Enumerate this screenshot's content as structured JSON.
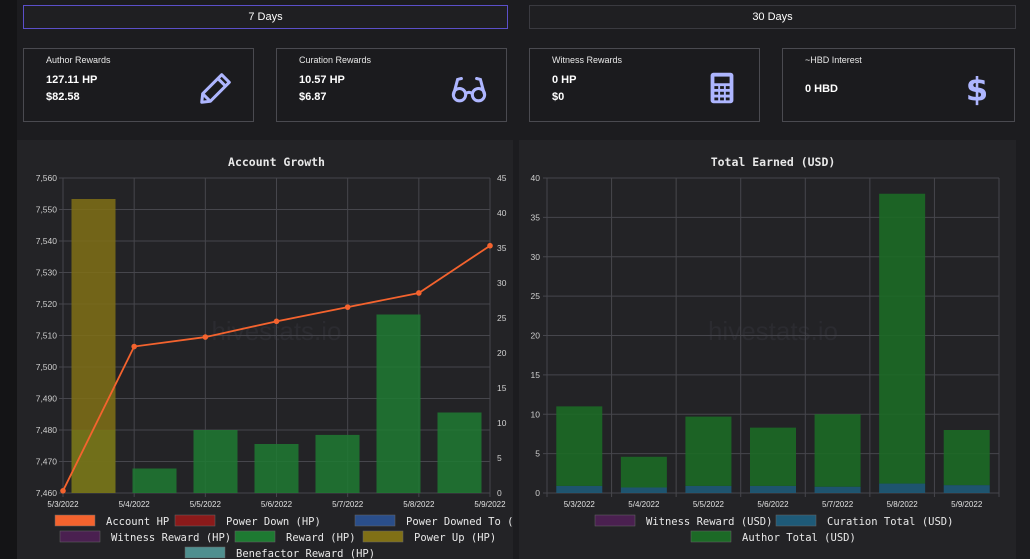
{
  "tabs": [
    {
      "label": "7 Days",
      "active": true
    },
    {
      "label": "30 Days",
      "active": false
    }
  ],
  "cards": [
    {
      "label": "Author Rewards",
      "line1": "127.11 HP",
      "line2": "$82.58",
      "icon": "pencil-icon"
    },
    {
      "label": "Curation Rewards",
      "line1": "10.57 HP",
      "line2": "$6.87",
      "icon": "glasses-icon"
    },
    {
      "label": "Witness Rewards",
      "line1": "0 HP",
      "line2": "$0",
      "icon": "calculator-icon"
    },
    {
      "label": "~HBD Interest",
      "line1": "0 HBD",
      "line2": "",
      "icon": "dollar-icon"
    }
  ],
  "colors": {
    "icon": "#aeb6ff",
    "account_hp": "#f4632e",
    "power_down": "#8b1a1a",
    "power_downed_to": "#2a4e8a",
    "witness_reward": "#4a2050",
    "reward": "#1e7a32",
    "power_up": "#807016",
    "benefactor": "#4f8f8f",
    "curation_total": "#1e5a78",
    "author_total": "#1c6a26"
  },
  "watermark": "hivestats.io",
  "chart_data": [
    {
      "type": "bar",
      "title": "Account Growth",
      "categories": [
        "5/3/2022",
        "5/4/2022",
        "5/5/2022",
        "5/6/2022",
        "5/7/2022",
        "5/8/2022",
        "5/9/2022"
      ],
      "y_left": {
        "min": 7460,
        "max": 7560,
        "ticks": [
          "7,460",
          "7,470",
          "7,480",
          "7,490",
          "7,500",
          "7,510",
          "7,520",
          "7,530",
          "7,540",
          "7,550",
          "7,560"
        ]
      },
      "y_right": {
        "min": 0,
        "max": 45,
        "ticks": [
          "0",
          "5",
          "10",
          "15",
          "20",
          "25",
          "30",
          "35",
          "40",
          "45"
        ]
      },
      "series": [
        {
          "name": "Account HP",
          "type": "line",
          "axis": "left",
          "color_key": "account_hp",
          "values": [
            7460.7,
            7506.5,
            7509.5,
            7514.5,
            7519.0,
            7523.5,
            7538.5
          ]
        },
        {
          "name": "Reward (HP)",
          "type": "bar",
          "axis": "right",
          "color_key": "reward",
          "values": [
            9,
            3.5,
            9,
            7,
            8.3,
            25.5,
            11.5
          ]
        },
        {
          "name": "Power Up (HP)",
          "type": "bar",
          "axis": "right",
          "color_key": "power_up",
          "values": [
            42,
            0,
            0,
            0,
            0,
            0,
            0
          ]
        }
      ],
      "legend": [
        {
          "name": "Account HP",
          "color_key": "account_hp"
        },
        {
          "name": "Power Down (HP)",
          "color_key": "power_down"
        },
        {
          "name": "Power Downed To (HP)",
          "color_key": "power_downed_to"
        },
        {
          "name": "Witness Reward (HP)",
          "color_key": "witness_reward"
        },
        {
          "name": "Reward (HP)",
          "color_key": "reward"
        },
        {
          "name": "Power Up (HP)",
          "color_key": "power_up"
        },
        {
          "name": "Benefactor Reward (HP)",
          "color_key": "benefactor"
        }
      ],
      "legend_position": "bottom",
      "grid": true
    },
    {
      "type": "bar",
      "title": "Total Earned (USD)",
      "categories": [
        "5/3/2022",
        "5/4/2022",
        "5/5/2022",
        "5/6/2022",
        "5/7/2022",
        "5/8/2022",
        "5/9/2022"
      ],
      "y": {
        "min": 0,
        "max": 40,
        "ticks": [
          "0",
          "5",
          "10",
          "15",
          "20",
          "25",
          "30",
          "35",
          "40"
        ]
      },
      "stacked": true,
      "series": [
        {
          "name": "Witness Reward (USD)",
          "color_key": "witness_reward",
          "values": [
            0,
            0,
            0,
            0,
            0,
            0,
            0
          ]
        },
        {
          "name": "Curation Total (USD)",
          "color_key": "curation_total",
          "values": [
            0.9,
            0.7,
            0.9,
            0.9,
            0.8,
            1.2,
            1.0
          ]
        },
        {
          "name": "Author Total (USD)",
          "color_key": "author_total",
          "values": [
            10.1,
            3.9,
            8.8,
            7.4,
            9.2,
            36.8,
            7.0
          ]
        }
      ],
      "legend": [
        {
          "name": "Witness Reward (USD)",
          "color_key": "witness_reward"
        },
        {
          "name": "Curation Total (USD)",
          "color_key": "curation_total"
        },
        {
          "name": "Author Total (USD)",
          "color_key": "author_total"
        }
      ],
      "legend_position": "bottom",
      "grid": true
    }
  ]
}
